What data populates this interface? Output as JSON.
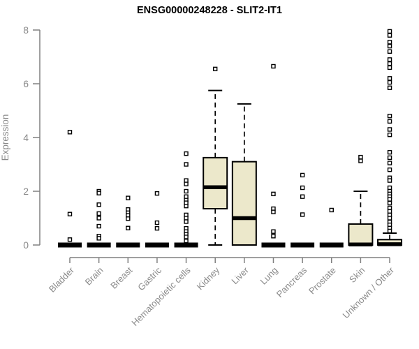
{
  "chart_data": {
    "type": "boxplot",
    "title": "ENSG00000248228 - SLIT2-IT1",
    "ylabel": "Expression",
    "xlabel": "",
    "ylim": [
      0,
      8
    ],
    "yticks": [
      0,
      2,
      4,
      6,
      8
    ],
    "grid": false,
    "legend": "none",
    "categories": [
      "Bladder",
      "Brain",
      "Breast",
      "Gastric",
      "Hematopoietic cells",
      "Kidney",
      "Liver",
      "Lung",
      "Pancreas",
      "Prostate",
      "Skin",
      "Unknown / Other"
    ],
    "boxes": [
      {
        "category": "Bladder",
        "q1": 0,
        "median": 0,
        "q3": 0,
        "whisker_low": 0,
        "whisker_high": 0,
        "outliers": [
          4.2,
          1.15,
          0.2
        ]
      },
      {
        "category": "Brain",
        "q1": 0,
        "median": 0,
        "q3": 0,
        "whisker_low": 0,
        "whisker_high": 0,
        "outliers": [
          2.0,
          1.93,
          1.5,
          1.17,
          1.0,
          0.7,
          0.33,
          0.25
        ]
      },
      {
        "category": "Breast",
        "q1": 0,
        "median": 0,
        "q3": 0,
        "whisker_low": 0,
        "whisker_high": 0,
        "outliers": [
          1.75,
          1.32,
          1.2,
          1.1,
          0.98,
          0.63
        ]
      },
      {
        "category": "Gastric",
        "q1": 0,
        "median": 0,
        "q3": 0,
        "whisker_low": 0,
        "whisker_high": 0,
        "outliers": [
          1.92,
          0.83,
          0.62
        ]
      },
      {
        "category": "Hematopoietic cells",
        "q1": 0,
        "median": 0,
        "q3": 0,
        "whisker_low": 0,
        "whisker_high": 0,
        "outliers": [
          3.4,
          3.0,
          2.4,
          2.27,
          2.0,
          1.8,
          1.67,
          1.57,
          1.45,
          1.12,
          1.0,
          0.87,
          0.62,
          0.5,
          0.4,
          0.3,
          0.15
        ]
      },
      {
        "category": "Kidney",
        "q1": 1.35,
        "median": 2.15,
        "q3": 3.25,
        "whisker_low": 0.0,
        "whisker_high": 5.75,
        "outliers": [
          6.55
        ]
      },
      {
        "category": "Liver",
        "q1": 0.0,
        "median": 1.0,
        "q3": 3.1,
        "whisker_low": 0.0,
        "whisker_high": 5.25,
        "outliers": []
      },
      {
        "category": "Lung",
        "q1": 0,
        "median": 0,
        "q3": 0,
        "whisker_low": 0,
        "whisker_high": 0,
        "outliers": [
          6.65,
          1.9,
          1.35,
          1.23,
          0.5,
          0.33
        ]
      },
      {
        "category": "Pancreas",
        "q1": 0,
        "median": 0,
        "q3": 0,
        "whisker_low": 0,
        "whisker_high": 0,
        "outliers": [
          2.6,
          2.13,
          1.8,
          1.13
        ]
      },
      {
        "category": "Prostate",
        "q1": 0,
        "median": 0,
        "q3": 0,
        "whisker_low": 0,
        "whisker_high": 0,
        "outliers": [
          1.3
        ]
      },
      {
        "category": "Skin",
        "q1": 0,
        "median": 0.02,
        "q3": 0.78,
        "whisker_low": 0,
        "whisker_high": 2.0,
        "outliers": [
          3.27,
          3.13
        ]
      },
      {
        "category": "Unknown / Other",
        "q1": 0,
        "median": 0.03,
        "q3": 0.2,
        "whisker_low": 0,
        "whisker_high": 0.44,
        "outliers": [
          7.95,
          7.8,
          7.55,
          7.4,
          7.2,
          6.9,
          6.75,
          6.6,
          6.2,
          6.05,
          5.85,
          4.8,
          4.6,
          4.3,
          4.1,
          3.45,
          3.25,
          3.05,
          2.8,
          2.5,
          2.4,
          2.13,
          2.0,
          1.9,
          1.8,
          1.7,
          1.56,
          1.38,
          1.25,
          1.12,
          1.0,
          0.86,
          0.75,
          0.63,
          0.52
        ]
      }
    ],
    "colors": {
      "box_fill": "#ece8cb",
      "box_stroke": "#000000",
      "median": "#000000",
      "whisker": "#000000",
      "outlier_stroke": "#000000",
      "outlier_fill": "#ffffff",
      "axis": "#808080",
      "tick_label": "#8a8a8a",
      "title": "#000000",
      "background": "#ffffff"
    }
  }
}
